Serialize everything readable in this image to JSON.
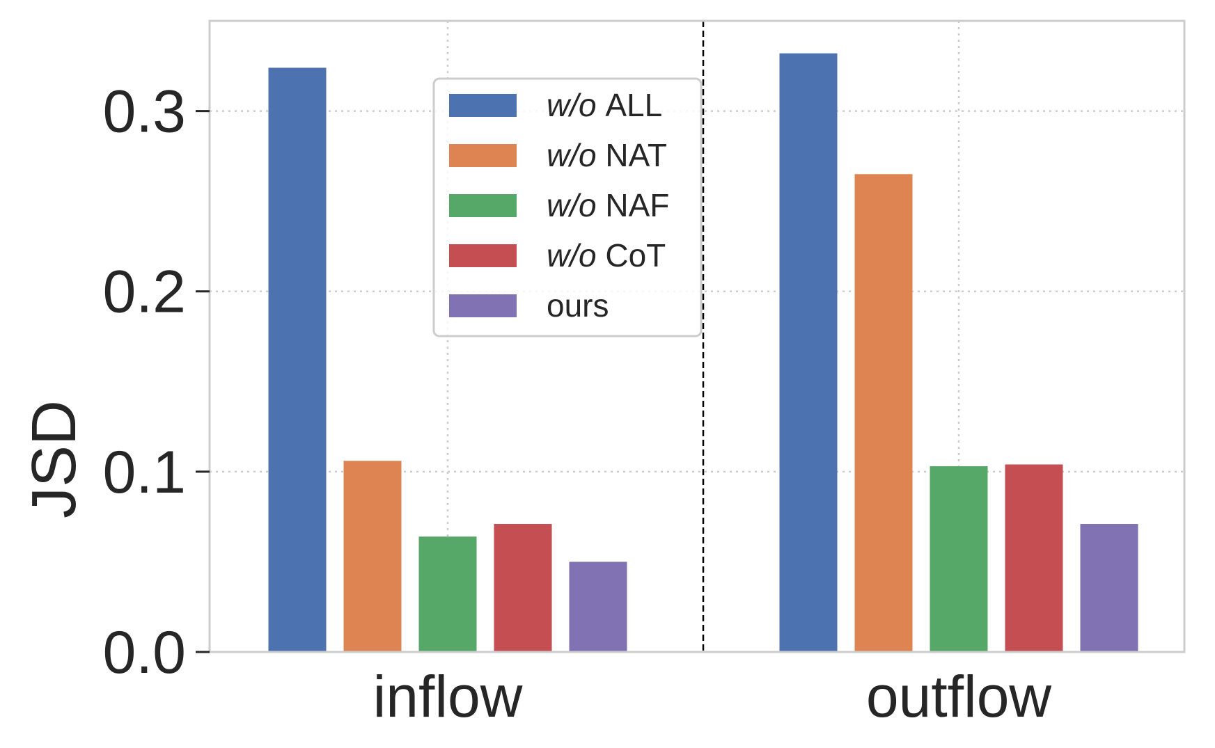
{
  "chart_data": {
    "type": "bar",
    "title": "",
    "xlabel": "",
    "ylabel": "JSD",
    "categories": [
      "inflow",
      "outflow"
    ],
    "ylim": [
      0,
      0.35
    ],
    "yticks": [
      "0.0",
      "0.1",
      "0.2",
      "0.3"
    ],
    "grid": true,
    "legend_position": "top-center",
    "divider": "dashed line between groups",
    "series": [
      {
        "name": "w/o ALL",
        "prefix": "w/o",
        "suffix": "ALL",
        "color": "#4c72b0",
        "values": [
          0.324,
          0.332
        ]
      },
      {
        "name": "w/o NAT",
        "prefix": "w/o",
        "suffix": "NAT",
        "color": "#dd8452",
        "values": [
          0.106,
          0.265
        ]
      },
      {
        "name": "w/o NAF",
        "prefix": "w/o",
        "suffix": "NAF",
        "color": "#55a868",
        "values": [
          0.064,
          0.103
        ]
      },
      {
        "name": "w/o CoT",
        "prefix": "w/o",
        "suffix": "CoT",
        "color": "#c44e52",
        "values": [
          0.071,
          0.104
        ]
      },
      {
        "name": "ours",
        "prefix": "",
        "suffix": "ours",
        "color": "#8172b3",
        "values": [
          0.05,
          0.071
        ]
      }
    ]
  }
}
